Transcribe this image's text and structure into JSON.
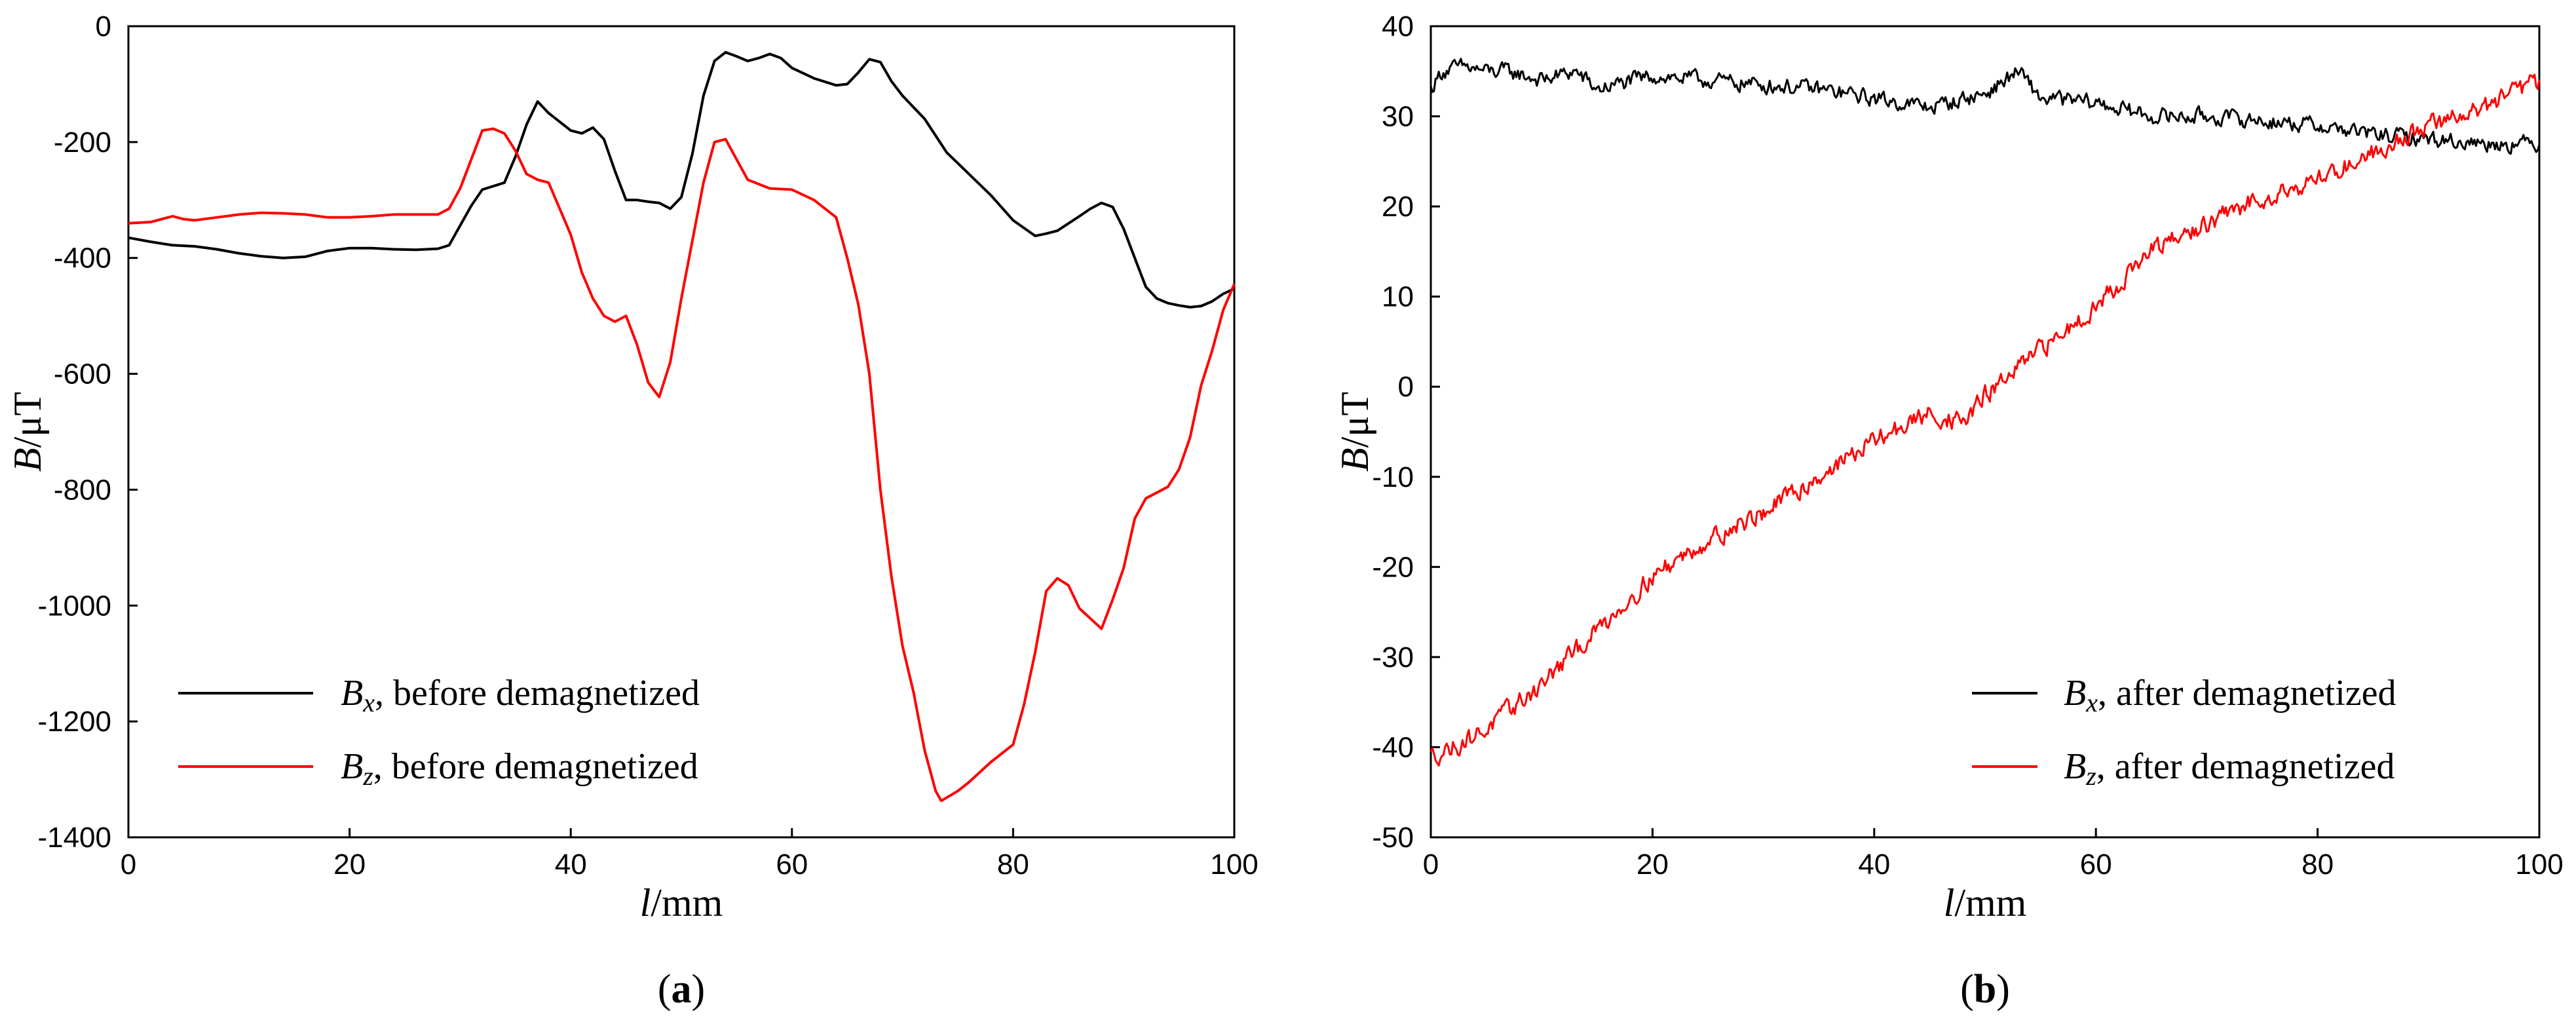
{
  "chart_data": [
    {
      "type": "line",
      "panel_label_open": "(",
      "panel_label_letter": "a",
      "panel_label_close": ")",
      "xlabel_var": "l",
      "xlabel_unit": "/mm",
      "ylabel_var": "B",
      "ylabel_unit": "/μT",
      "xlim": [
        0,
        100
      ],
      "ylim": [
        -1400,
        0
      ],
      "xticks": [
        "0",
        "20",
        "40",
        "60",
        "80",
        "100"
      ],
      "yticks": [
        "-1400",
        "-1200",
        "-1000",
        "-800",
        "-600",
        "-400",
        "-200",
        "0"
      ],
      "legend_position": "bottom-left",
      "series": [
        {
          "name_var": "B",
          "name_sub": "x",
          "name_rest": ", before demagnetized",
          "color": "#000000",
          "points": [
            [
              0,
              -365
            ],
            [
              2,
              -372
            ],
            [
              4,
              -378
            ],
            [
              6,
              -380
            ],
            [
              8,
              -385
            ],
            [
              10,
              -392
            ],
            [
              12,
              -397
            ],
            [
              14,
              -400
            ],
            [
              16,
              -398
            ],
            [
              18,
              -388
            ],
            [
              20,
              -383
            ],
            [
              22,
              -383
            ],
            [
              24,
              -385
            ],
            [
              26,
              -386
            ],
            [
              28,
              -384
            ],
            [
              29,
              -378
            ],
            [
              31,
              -310
            ],
            [
              32,
              -282
            ],
            [
              34,
              -270
            ],
            [
              35,
              -225
            ],
            [
              36,
              -170
            ],
            [
              37,
              -130
            ],
            [
              38,
              -150
            ],
            [
              40,
              -180
            ],
            [
              41,
              -185
            ],
            [
              42,
              -175
            ],
            [
              43,
              -195
            ],
            [
              44,
              -250
            ],
            [
              45,
              -300
            ],
            [
              46,
              -300
            ],
            [
              47,
              -303
            ],
            [
              48,
              -305
            ],
            [
              49,
              -315
            ],
            [
              50,
              -295
            ],
            [
              51,
              -220
            ],
            [
              52,
              -120
            ],
            [
              53,
              -60
            ],
            [
              54,
              -45
            ],
            [
              55,
              -52
            ],
            [
              56,
              -60
            ],
            [
              57,
              -55
            ],
            [
              58,
              -48
            ],
            [
              59,
              -55
            ],
            [
              60,
              -72
            ],
            [
              62,
              -90
            ],
            [
              64,
              -102
            ],
            [
              65,
              -100
            ],
            [
              66,
              -80
            ],
            [
              67,
              -57
            ],
            [
              68,
              -62
            ],
            [
              69,
              -95
            ],
            [
              70,
              -120
            ],
            [
              72,
              -160
            ],
            [
              74,
              -218
            ],
            [
              76,
              -255
            ],
            [
              78,
              -292
            ],
            [
              80,
              -335
            ],
            [
              82,
              -362
            ],
            [
              83,
              -358
            ],
            [
              84,
              -353
            ],
            [
              86,
              -328
            ],
            [
              87,
              -315
            ],
            [
              88,
              -305
            ],
            [
              89,
              -312
            ],
            [
              90,
              -350
            ],
            [
              91,
              -400
            ],
            [
              92,
              -450
            ],
            [
              93,
              -470
            ],
            [
              94,
              -478
            ],
            [
              95,
              -482
            ],
            [
              96,
              -485
            ],
            [
              97,
              -483
            ],
            [
              98,
              -475
            ],
            [
              99,
              -462
            ],
            [
              100,
              -453
            ]
          ]
        },
        {
          "name_var": "B",
          "name_sub": "z",
          "name_rest": ", before demagnetized",
          "color": "#ff0000",
          "points": [
            [
              0,
              -340
            ],
            [
              2,
              -338
            ],
            [
              4,
              -328
            ],
            [
              5,
              -333
            ],
            [
              6,
              -335
            ],
            [
              8,
              -330
            ],
            [
              10,
              -325
            ],
            [
              12,
              -322
            ],
            [
              14,
              -323
            ],
            [
              16,
              -325
            ],
            [
              18,
              -330
            ],
            [
              20,
              -330
            ],
            [
              22,
              -328
            ],
            [
              24,
              -325
            ],
            [
              26,
              -325
            ],
            [
              28,
              -325
            ],
            [
              29,
              -315
            ],
            [
              30,
              -280
            ],
            [
              31,
              -230
            ],
            [
              32,
              -180
            ],
            [
              33,
              -177
            ],
            [
              34,
              -185
            ],
            [
              35,
              -215
            ],
            [
              36,
              -255
            ],
            [
              37,
              -265
            ],
            [
              38,
              -270
            ],
            [
              39,
              -315
            ],
            [
              40,
              -360
            ],
            [
              41,
              -425
            ],
            [
              42,
              -470
            ],
            [
              43,
              -500
            ],
            [
              44,
              -510
            ],
            [
              45,
              -500
            ],
            [
              46,
              -550
            ],
            [
              47,
              -615
            ],
            [
              48,
              -640
            ],
            [
              49,
              -580
            ],
            [
              50,
              -470
            ],
            [
              51,
              -370
            ],
            [
              52,
              -270
            ],
            [
              53,
              -200
            ],
            [
              54,
              -195
            ],
            [
              55,
              -230
            ],
            [
              56,
              -265
            ],
            [
              58,
              -280
            ],
            [
              60,
              -282
            ],
            [
              62,
              -300
            ],
            [
              64,
              -330
            ],
            [
              65,
              -400
            ],
            [
              66,
              -480
            ],
            [
              67,
              -600
            ],
            [
              68,
              -800
            ],
            [
              69,
              -950
            ],
            [
              70,
              -1070
            ],
            [
              71,
              -1150
            ],
            [
              72,
              -1250
            ],
            [
              73,
              -1320
            ],
            [
              73.5,
              -1337
            ],
            [
              75,
              -1320
            ],
            [
              76,
              -1305
            ],
            [
              78,
              -1270
            ],
            [
              80,
              -1240
            ],
            [
              81,
              -1170
            ],
            [
              82,
              -1080
            ],
            [
              83,
              -975
            ],
            [
              84,
              -953
            ],
            [
              85,
              -965
            ],
            [
              86,
              -1005
            ],
            [
              88,
              -1040
            ],
            [
              89,
              -990
            ],
            [
              90,
              -935
            ],
            [
              91,
              -850
            ],
            [
              92,
              -815
            ],
            [
              94,
              -795
            ],
            [
              95,
              -765
            ],
            [
              96,
              -710
            ],
            [
              97,
              -620
            ],
            [
              98,
              -560
            ],
            [
              99,
              -490
            ],
            [
              100,
              -445
            ]
          ]
        }
      ]
    },
    {
      "type": "line",
      "panel_label_open": "(",
      "panel_label_letter": "b",
      "panel_label_close": ")",
      "xlabel_var": "l",
      "xlabel_unit": "/mm",
      "ylabel_var": "B",
      "ylabel_unit": "/μT",
      "xlim": [
        0,
        100
      ],
      "ylim": [
        -50,
        40
      ],
      "xticks": [
        "0",
        "20",
        "40",
        "60",
        "80",
        "100"
      ],
      "yticks": [
        "-50",
        "-40",
        "-30",
        "-20",
        "-10",
        "0",
        "10",
        "20",
        "30",
        "40"
      ],
      "legend_position": "bottom-right",
      "series": [
        {
          "name_var": "B",
          "name_sub": "x",
          "name_rest": ", after demagnetized",
          "color": "#000000",
          "noisy": true,
          "noise_amplitude": 0.9,
          "points": [
            [
              0,
              33
            ],
            [
              1,
              35
            ],
            [
              3,
              35.5
            ],
            [
              5,
              35
            ],
            [
              7,
              35
            ],
            [
              10,
              34
            ],
            [
              13,
              35
            ],
            [
              15,
              33
            ],
            [
              20,
              34.5
            ],
            [
              25,
              34
            ],
            [
              30,
              33.5
            ],
            [
              35,
              33
            ],
            [
              40,
              32
            ],
            [
              45,
              31
            ],
            [
              50,
              32.5
            ],
            [
              53,
              35
            ],
            [
              55,
              32
            ],
            [
              60,
              31.5
            ],
            [
              65,
              30
            ],
            [
              70,
              30
            ],
            [
              75,
              29.5
            ],
            [
              80,
              29
            ],
            [
              85,
              28
            ],
            [
              90,
              27.5
            ],
            [
              95,
              27
            ],
            [
              100,
              27
            ]
          ]
        },
        {
          "name_var": "B",
          "name_sub": "z",
          "name_rest": ", after demagnetized",
          "color": "#ff0000",
          "noisy": true,
          "noise_amplitude": 1.1,
          "points": [
            [
              0,
              -41
            ],
            [
              2,
              -40
            ],
            [
              5,
              -38
            ],
            [
              10,
              -33
            ],
            [
              15,
              -27
            ],
            [
              20,
              -21
            ],
            [
              25,
              -17
            ],
            [
              30,
              -14
            ],
            [
              35,
              -10
            ],
            [
              40,
              -6
            ],
            [
              45,
              -3
            ],
            [
              48,
              -4
            ],
            [
              50,
              -1
            ],
            [
              55,
              4
            ],
            [
              60,
              9
            ],
            [
              65,
              15
            ],
            [
              70,
              18
            ],
            [
              75,
              21
            ],
            [
              80,
              23
            ],
            [
              85,
              26
            ],
            [
              90,
              29
            ],
            [
              95,
              31
            ],
            [
              100,
              34
            ]
          ]
        }
      ]
    }
  ]
}
